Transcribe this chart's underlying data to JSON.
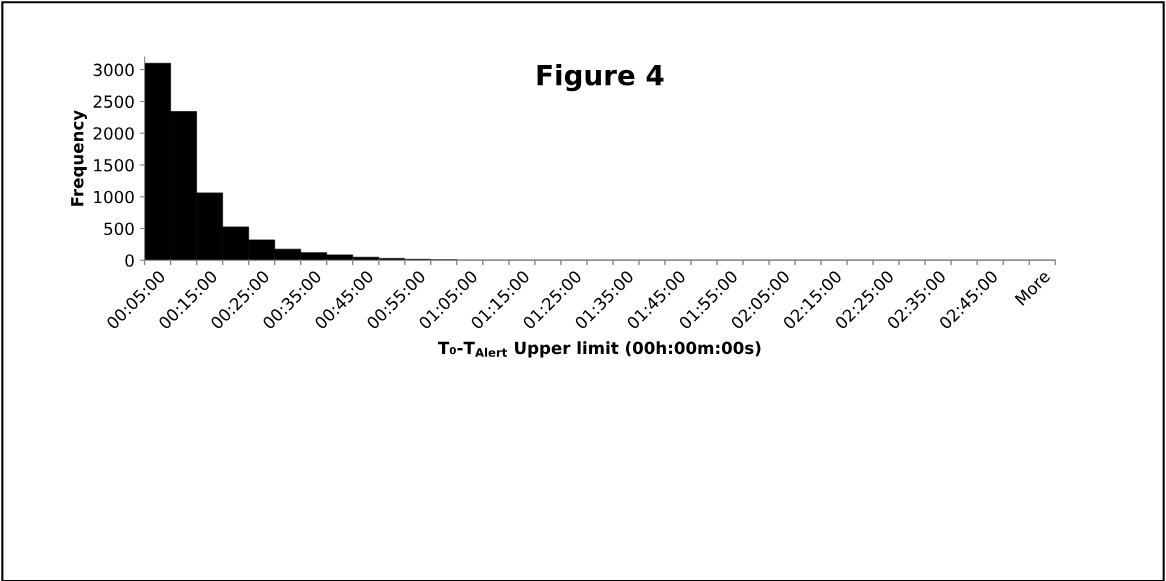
{
  "chart_data": {
    "type": "bar",
    "title": "Figure 4",
    "xlabel": "T₀-T$_{Alert}$ Upper limit (00h:00m:00s)",
    "ylabel": "Frequency",
    "categories": [
      "00:05:00",
      null,
      "00:15:00",
      null,
      "00:25:00",
      null,
      "00:35:00",
      null,
      "00:45:00",
      null,
      "00:55:00",
      null,
      "01:05:00",
      null,
      "01:15:00",
      null,
      "01:25:00",
      null,
      "01:35:00",
      null,
      "01:45:00",
      null,
      "01:55:00",
      null,
      "02:05:00",
      null,
      "02:15:00",
      null,
      "02:25:00",
      null,
      "02:35:00",
      null,
      "02:45:00",
      null,
      "More"
    ],
    "values": [
      3100,
      2340,
      1060,
      525,
      320,
      175,
      120,
      85,
      48,
      30,
      15,
      8,
      0,
      0,
      0,
      0,
      0,
      0,
      0,
      0,
      0,
      0,
      0,
      0,
      0,
      0,
      0,
      0,
      0,
      0,
      0,
      0,
      0,
      0,
      0
    ],
    "color": "#000000",
    "ylim": [
      0,
      3200
    ],
    "yticks": [
      0,
      500,
      1000,
      1500,
      2000,
      2500,
      3000
    ],
    "grid": false,
    "legend": false
  }
}
